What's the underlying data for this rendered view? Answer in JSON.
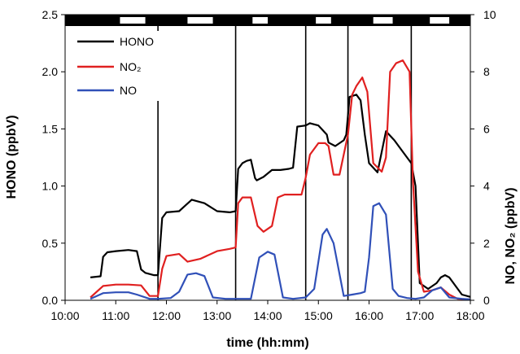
{
  "chart_data": {
    "type": "line",
    "title": "",
    "xlabel": "time (hh:mm)",
    "ylabel_left": "HONO (ppbV)",
    "ylabel_right": "NO, NO₂ (ppbV)",
    "xlim": [
      "10:00",
      "18:00"
    ],
    "x_ticks": [
      "10:00",
      "11:00",
      "12:00",
      "13:00",
      "14:00",
      "15:00",
      "16:00",
      "17:00",
      "18:00"
    ],
    "ylim_left": [
      0,
      2.5
    ],
    "y_ticks_left": [
      "0.0",
      "0.5",
      "1.0",
      "1.5",
      "2.0",
      "2.5"
    ],
    "ylim_right": [
      0,
      10
    ],
    "y_ticks_right": [
      "0",
      "2",
      "4",
      "6",
      "8",
      "10"
    ],
    "grid": false,
    "legend_position": "top-left",
    "legend": [
      {
        "name": "HONO",
        "color": "#000000"
      },
      {
        "name": "NO₂",
        "color": "#e02020"
      },
      {
        "name": "NO",
        "color": "#3050b8"
      }
    ],
    "top_bar": {
      "colors": {
        "dark": "#000000",
        "light": "#ffffff"
      },
      "light_intervals": [
        [
          "11:05",
          "11:35"
        ],
        [
          "12:25",
          "12:55"
        ],
        [
          "13:42",
          "14:00"
        ],
        [
          "14:57",
          "15:15"
        ],
        [
          "16:05",
          "16:28"
        ],
        [
          "17:12",
          "17:35"
        ]
      ]
    },
    "vertical_lines": [
      "11:50",
      "13:22",
      "14:45",
      "15:35",
      "16:50"
    ],
    "series": [
      {
        "name": "HONO",
        "axis": "left",
        "color": "#000000",
        "x": [
          "10:30",
          "10:42",
          "10:45",
          "10:50",
          "11:00",
          "11:15",
          "11:25",
          "11:30",
          "11:35",
          "11:45",
          "11:50",
          "11:55",
          "12:00",
          "12:15",
          "12:30",
          "12:45",
          "13:00",
          "13:15",
          "13:22",
          "13:25",
          "13:30",
          "13:35",
          "13:40",
          "13:45",
          "13:47",
          "13:55",
          "14:05",
          "14:15",
          "14:25",
          "14:30",
          "14:35",
          "14:45",
          "14:50",
          "15:00",
          "15:10",
          "15:12",
          "15:20",
          "15:30",
          "15:33",
          "15:37",
          "15:45",
          "15:50",
          "15:55",
          "16:00",
          "16:10",
          "16:20",
          "16:30",
          "16:40",
          "16:50",
          "16:55",
          "17:00",
          "17:10",
          "17:20",
          "17:25",
          "17:30",
          "17:35",
          "17:50",
          "18:00"
        ],
        "y": [
          0.2,
          0.21,
          0.38,
          0.42,
          0.43,
          0.44,
          0.43,
          0.27,
          0.24,
          0.22,
          0.22,
          0.72,
          0.77,
          0.78,
          0.88,
          0.85,
          0.78,
          0.77,
          0.78,
          1.15,
          1.2,
          1.22,
          1.23,
          1.07,
          1.05,
          1.08,
          1.14,
          1.14,
          1.15,
          1.16,
          1.52,
          1.53,
          1.55,
          1.53,
          1.45,
          1.38,
          1.35,
          1.4,
          1.45,
          1.78,
          1.8,
          1.75,
          1.45,
          1.2,
          1.12,
          1.48,
          1.4,
          1.3,
          1.2,
          1.0,
          0.15,
          0.1,
          0.15,
          0.2,
          0.22,
          0.2,
          0.05,
          0.03
        ]
      },
      {
        "name": "NO₂",
        "axis": "right",
        "color": "#e02020",
        "x": [
          "10:30",
          "10:45",
          "11:00",
          "11:15",
          "11:30",
          "11:40",
          "11:50",
          "11:55",
          "12:00",
          "12:15",
          "12:25",
          "12:40",
          "13:00",
          "13:15",
          "13:22",
          "13:25",
          "13:30",
          "13:40",
          "13:48",
          "13:55",
          "14:05",
          "14:12",
          "14:20",
          "14:30",
          "14:40",
          "14:45",
          "14:50",
          "15:00",
          "15:08",
          "15:12",
          "15:18",
          "15:25",
          "15:35",
          "15:40",
          "15:45",
          "15:52",
          "15:58",
          "16:05",
          "16:15",
          "16:20",
          "16:25",
          "16:32",
          "16:40",
          "16:48",
          "16:52",
          "16:58",
          "17:05",
          "17:15",
          "17:25",
          "17:35",
          "17:45",
          "18:00"
        ],
        "y": [
          0.1,
          0.5,
          0.55,
          0.55,
          0.52,
          0.15,
          0.15,
          1.1,
          1.55,
          1.62,
          1.35,
          1.45,
          1.72,
          1.8,
          1.85,
          3.4,
          3.6,
          3.6,
          2.6,
          2.4,
          2.6,
          3.6,
          3.7,
          3.7,
          3.7,
          4.3,
          5.1,
          5.5,
          5.5,
          5.4,
          4.4,
          4.4,
          5.8,
          7.2,
          7.5,
          7.8,
          7.3,
          4.8,
          4.5,
          5.0,
          8.0,
          8.3,
          8.4,
          8.0,
          4.2,
          1.0,
          0.3,
          0.35,
          0.45,
          0.2,
          0.05,
          0.03
        ]
      },
      {
        "name": "NO",
        "axis": "right",
        "color": "#3050b8",
        "x": [
          "10:30",
          "10:45",
          "11:00",
          "11:15",
          "11:25",
          "11:40",
          "11:50",
          "12:05",
          "12:15",
          "12:25",
          "12:35",
          "12:45",
          "12:55",
          "13:10",
          "13:22",
          "13:40",
          "13:50",
          "14:00",
          "14:08",
          "14:18",
          "14:30",
          "14:45",
          "14:55",
          "15:05",
          "15:10",
          "15:18",
          "15:30",
          "15:40",
          "15:50",
          "15:55",
          "16:00",
          "16:05",
          "16:12",
          "16:20",
          "16:28",
          "16:35",
          "16:45",
          "16:55",
          "17:05",
          "17:15",
          "17:25",
          "17:35",
          "17:50",
          "18:00"
        ],
        "y": [
          0.05,
          0.25,
          0.28,
          0.28,
          0.2,
          0.05,
          0.05,
          0.08,
          0.3,
          0.9,
          0.95,
          0.85,
          0.1,
          0.05,
          0.05,
          0.05,
          1.5,
          1.7,
          1.6,
          0.1,
          0.05,
          0.1,
          0.4,
          2.3,
          2.5,
          2.0,
          0.15,
          0.2,
          0.25,
          0.3,
          1.5,
          3.3,
          3.4,
          3.0,
          0.4,
          0.15,
          0.08,
          0.05,
          0.1,
          0.35,
          0.45,
          0.1,
          0.05,
          0.03
        ]
      }
    ]
  }
}
